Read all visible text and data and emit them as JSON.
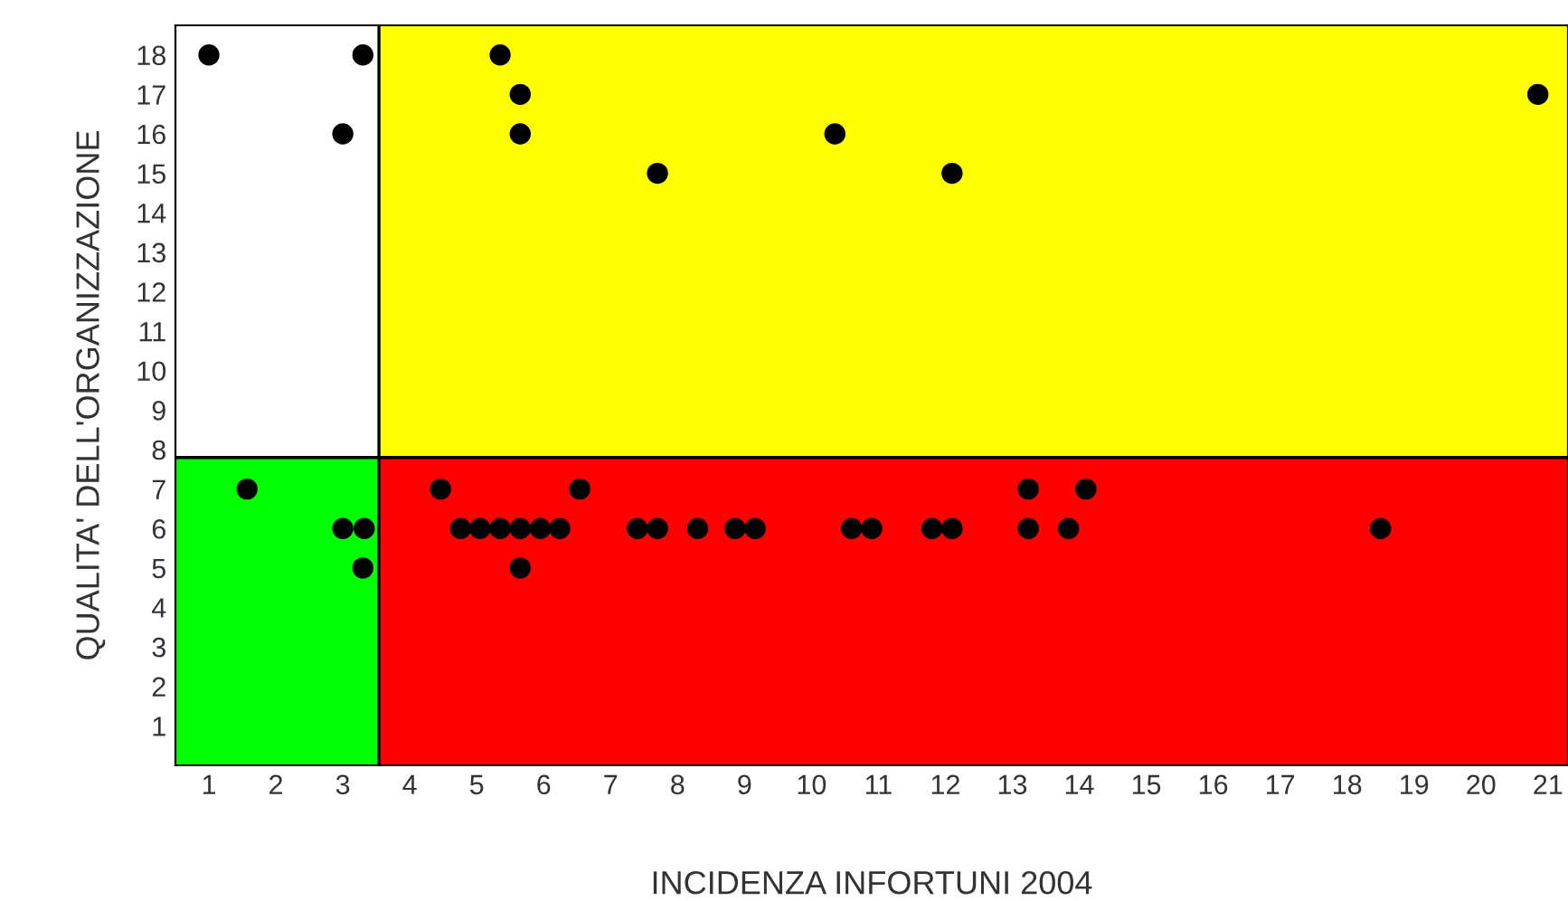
{
  "chart_data": {
    "type": "scatter",
    "xlabel": "INCIDENZA INFORTUNI 2004",
    "ylabel": "QUALITA' DELL'ORGANIZZAZIONE",
    "xlim": [
      0.5,
      21.3
    ],
    "ylim": [
      0,
      18.75
    ],
    "xticks": [
      1,
      2,
      3,
      4,
      5,
      6,
      7,
      8,
      9,
      10,
      11,
      12,
      13,
      14,
      15,
      16,
      17,
      18,
      19,
      20,
      21
    ],
    "yticks": [
      1,
      2,
      3,
      4,
      5,
      6,
      7,
      8,
      9,
      10,
      11,
      12,
      13,
      14,
      15,
      16,
      17,
      18
    ],
    "grid": false,
    "marker": "circle",
    "bands": [
      {
        "axis": "y",
        "from": 0,
        "to": 7.8,
        "color": "#ff0000"
      },
      {
        "axis": "y",
        "from": 7.8,
        "to": 18.75,
        "color": "#ffff00"
      },
      {
        "axis": "x",
        "from": 0.5,
        "to": 3.54,
        "color": "#00ff00"
      }
    ],
    "ref_lines": [
      {
        "axis": "x",
        "value": 3.54,
        "color": "#000000"
      },
      {
        "axis": "y",
        "value": 7.8,
        "color": "#000000"
      }
    ],
    "series": [
      {
        "color": "#000000",
        "x": [
          1,
          3.3,
          3.0,
          5.35,
          5.65,
          5.65,
          7.7,
          10.35,
          12.1,
          20.85,
          1.57,
          3.0,
          3.32,
          3.3,
          4.46,
          4.76,
          5.05,
          5.35,
          5.65,
          5.95,
          6.24,
          6.54,
          7.4,
          7.7,
          8.3,
          8.86,
          9.16,
          5.65,
          10.6,
          10.9,
          11.8,
          12.1,
          13.24,
          13.24,
          13.84,
          14.1,
          18.5
        ],
        "values": [
          18,
          18,
          16,
          18,
          17,
          16,
          15,
          16,
          15,
          17,
          7,
          6,
          6,
          5,
          7,
          6,
          6,
          6,
          6,
          6,
          6,
          7,
          6,
          6,
          6,
          6,
          6,
          5,
          6,
          6,
          6,
          6,
          7,
          6,
          6,
          7,
          6
        ]
      }
    ]
  }
}
